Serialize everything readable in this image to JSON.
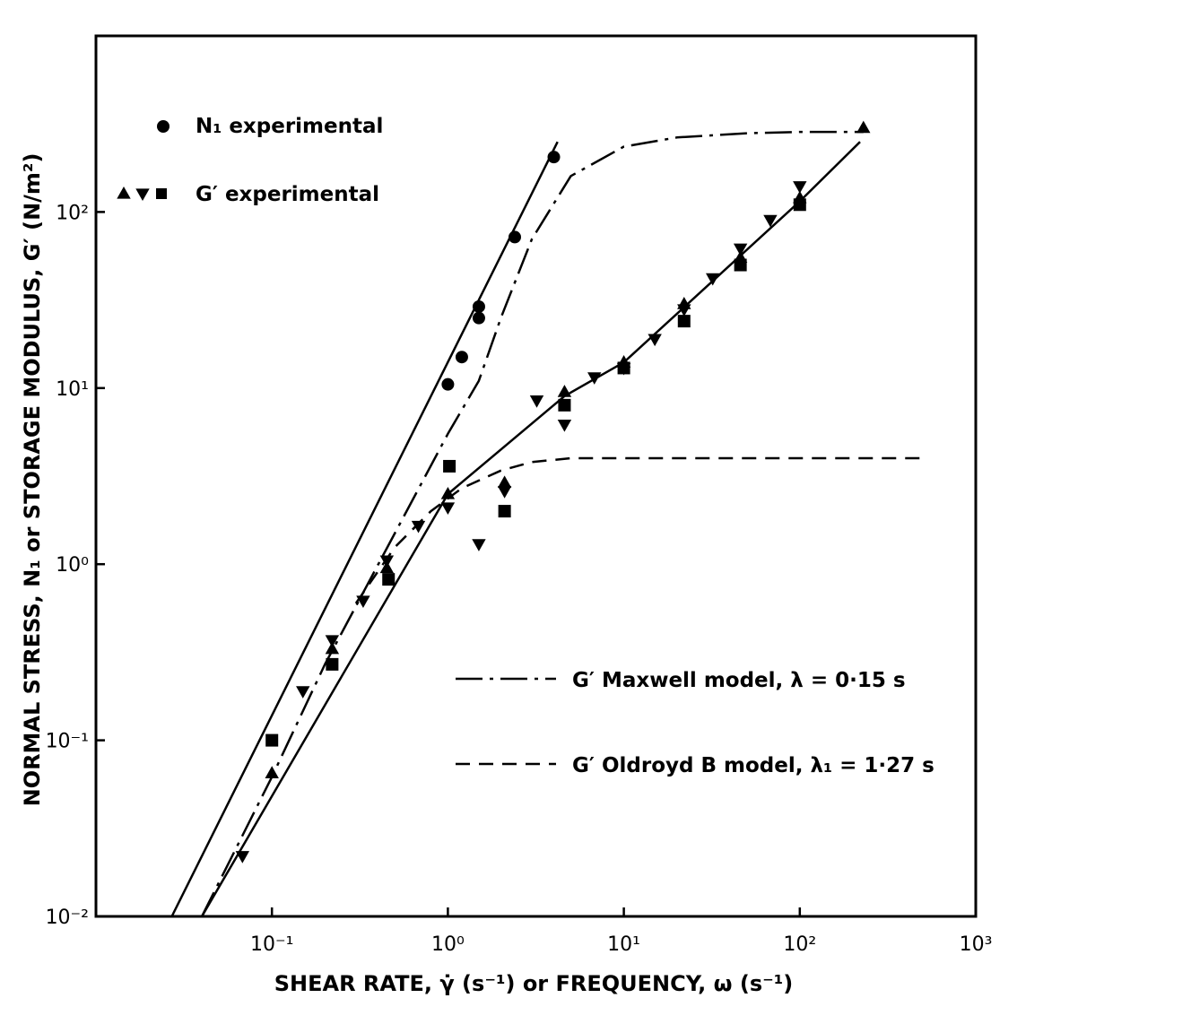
{
  "chart_data": {
    "type": "scatter",
    "title": "",
    "xlabel": "SHEAR RATE, γ̇ (s⁻¹) or FREQUENCY, ω (s⁻¹)",
    "ylabel": "NORMAL STRESS, N₁ or STORAGE MODULUS, G′ (N/m²)",
    "xscale": "log",
    "yscale": "log",
    "xlim": [
      0.01,
      1000
    ],
    "ylim": [
      0.01,
      1000
    ],
    "x_tick_labels": [
      "10⁻¹",
      "10⁰",
      "10¹",
      "10²",
      "10³"
    ],
    "x_tick_values": [
      0.1,
      1,
      10,
      100,
      1000
    ],
    "y_tick_labels": [
      "10⁻²",
      "10⁻¹",
      "10⁰",
      "10¹",
      "10²"
    ],
    "y_tick_values": [
      0.01,
      0.1,
      1,
      10,
      100
    ],
    "grid": false,
    "legend_top": [
      {
        "label": "N₁ experimental",
        "markers": [
          "circle"
        ]
      },
      {
        "label": "G′ experimental",
        "markers": [
          "triangle-up",
          "triangle-down",
          "square"
        ]
      }
    ],
    "legend_bottom": [
      {
        "label": "G′ Maxwell model, λ = 0·15 s",
        "style": "dash-dot"
      },
      {
        "label": "G′ Oldroyd B model, λ₁ = 1·27 s",
        "style": "dashed"
      }
    ],
    "series": [
      {
        "name": "N₁ experimental",
        "marker": "circle",
        "points": [
          [
            1.0,
            10.5
          ],
          [
            1.2,
            15
          ],
          [
            1.5,
            25
          ],
          [
            1.5,
            29
          ],
          [
            2.4,
            72
          ],
          [
            4.0,
            205
          ]
        ]
      },
      {
        "name": "G′ experimental",
        "marker": "triangle-up",
        "points": [
          [
            0.1,
            0.065
          ],
          [
            0.22,
            0.33
          ],
          [
            0.45,
            0.95
          ],
          [
            1.0,
            2.5
          ],
          [
            2.1,
            2.9
          ],
          [
            4.6,
            9.5
          ],
          [
            10,
            14
          ],
          [
            22,
            30
          ],
          [
            46,
            55
          ],
          [
            100,
            120
          ],
          [
            230,
            300
          ]
        ]
      },
      {
        "name": "G′ experimental",
        "marker": "triangle-down",
        "points": [
          [
            0.068,
            0.022
          ],
          [
            0.15,
            0.19
          ],
          [
            0.22,
            0.37
          ],
          [
            0.33,
            0.62
          ],
          [
            0.45,
            1.05
          ],
          [
            0.68,
            1.65
          ],
          [
            1.0,
            2.1
          ],
          [
            1.5,
            1.3
          ],
          [
            2.1,
            2.6
          ],
          [
            3.2,
            8.5
          ],
          [
            4.6,
            6.2
          ],
          [
            6.8,
            11.5
          ],
          [
            10,
            13
          ],
          [
            15,
            19
          ],
          [
            22,
            28
          ],
          [
            32,
            42
          ],
          [
            46,
            62
          ],
          [
            68,
            90
          ],
          [
            100,
            140
          ]
        ]
      },
      {
        "name": "G′ experimental",
        "marker": "square",
        "points": [
          [
            0.1,
            0.1
          ],
          [
            0.22,
            0.27
          ],
          [
            0.46,
            0.82
          ],
          [
            1.02,
            3.6
          ],
          [
            2.1,
            2.0
          ],
          [
            4.6,
            8.0
          ],
          [
            10,
            13
          ],
          [
            22,
            24
          ],
          [
            46,
            50
          ],
          [
            100,
            110
          ]
        ]
      }
    ],
    "lines": [
      {
        "style": "solid",
        "points": [
          [
            0.027,
            0.01
          ],
          [
            4.2,
            250
          ]
        ]
      },
      {
        "style": "solid",
        "points": [
          [
            0.04,
            0.01
          ],
          [
            1.0,
            2.5
          ],
          [
            4.6,
            9.0
          ],
          [
            10,
            14
          ],
          [
            100,
            115
          ],
          [
            220,
            250
          ]
        ]
      },
      {
        "style": "dash-dot",
        "points": [
          [
            0.04,
            0.01
          ],
          [
            0.1,
            0.062
          ],
          [
            0.2,
            0.27
          ],
          [
            0.5,
            1.5
          ],
          [
            1.0,
            5.5
          ],
          [
            1.5,
            11
          ],
          [
            2.0,
            25
          ],
          [
            3.0,
            70
          ],
          [
            5.0,
            160
          ],
          [
            10,
            235
          ],
          [
            20,
            265
          ],
          [
            50,
            280
          ],
          [
            100,
            285
          ],
          [
            230,
            285
          ]
        ]
      },
      {
        "style": "dashed",
        "points": [
          [
            0.3,
            0.6
          ],
          [
            0.5,
            1.25
          ],
          [
            0.8,
            2.0
          ],
          [
            1.2,
            2.7
          ],
          [
            2.0,
            3.4
          ],
          [
            3.0,
            3.8
          ],
          [
            5.0,
            4.0
          ],
          [
            10,
            4.0
          ],
          [
            500,
            4.0
          ]
        ]
      }
    ]
  }
}
